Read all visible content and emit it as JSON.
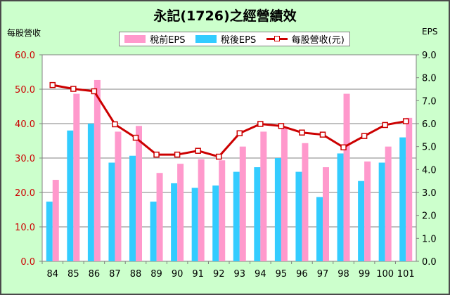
{
  "title": "永記(1726)之經營績效",
  "left_axis_title": "每股營收",
  "right_axis_title": "EPS",
  "colors": {
    "background": "#ccffcc",
    "pretax": "#ff99cc",
    "aftertax": "#33ccff",
    "revenue": "#cc0000",
    "left_tick": "#cc0000"
  },
  "chart_data": {
    "type": "bar",
    "title": "永記(1726)之經營績效",
    "categories": [
      "84",
      "85",
      "86",
      "87",
      "88",
      "89",
      "90",
      "91",
      "92",
      "93",
      "94",
      "95",
      "96",
      "97",
      "98",
      "99",
      "100",
      "101"
    ],
    "series": [
      {
        "name": "稅前EPS",
        "type": "bar",
        "axis": "right",
        "values": [
          3.55,
          7.3,
          7.9,
          5.65,
          5.9,
          3.85,
          4.25,
          4.45,
          4.4,
          5.0,
          5.65,
          5.8,
          5.15,
          4.1,
          7.3,
          4.35,
          5.0,
          6.25
        ]
      },
      {
        "name": "稅後EPS",
        "type": "bar",
        "axis": "right",
        "values": [
          2.6,
          5.7,
          6.0,
          4.3,
          4.6,
          2.6,
          3.4,
          3.2,
          3.3,
          3.9,
          4.1,
          4.5,
          3.9,
          2.8,
          4.7,
          3.5,
          4.3,
          5.4
        ]
      },
      {
        "name": "每股營收(元)",
        "type": "line",
        "axis": "left",
        "values": [
          51.2,
          50.1,
          49.4,
          39.8,
          35.9,
          31.0,
          31.0,
          32.1,
          30.4,
          37.2,
          39.9,
          39.3,
          37.4,
          36.8,
          33.1,
          36.4,
          39.6,
          40.7
        ]
      }
    ],
    "y_left": {
      "label": "每股營收",
      "range": [
        0,
        60
      ],
      "ticks": [
        "0.0",
        "10.0",
        "20.0",
        "30.0",
        "40.0",
        "50.0",
        "60.0"
      ]
    },
    "y_right": {
      "label": "EPS",
      "range": [
        0,
        9
      ],
      "ticks": [
        "0.0",
        "1.0",
        "2.0",
        "3.0",
        "4.0",
        "5.0",
        "6.0",
        "7.0",
        "8.0",
        "9.0"
      ]
    },
    "grid": "horizontal",
    "legend_position": "top"
  }
}
